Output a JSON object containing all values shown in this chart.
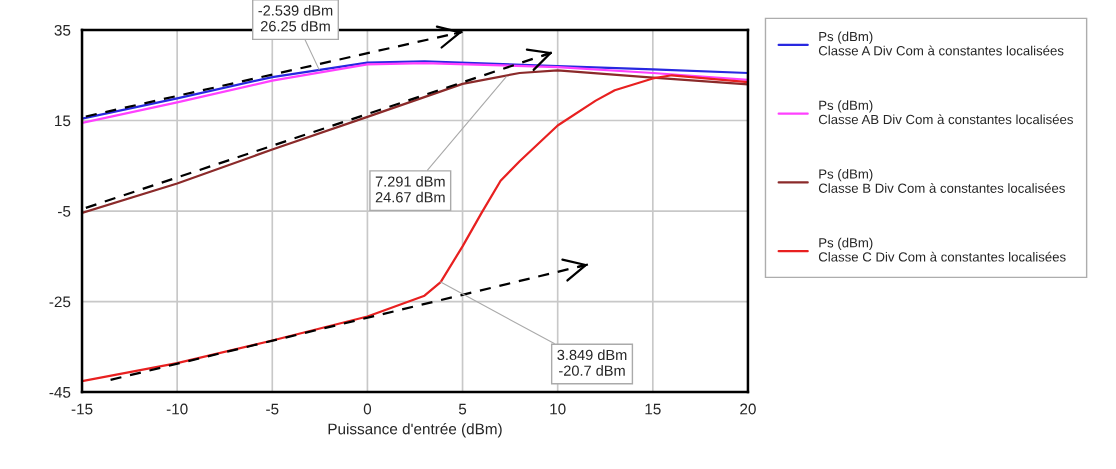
{
  "chart_data": {
    "type": "line",
    "xlabel": "Puissance d'entrée (dBm)",
    "xlim": [
      -15,
      20
    ],
    "ylim": [
      -45,
      35
    ],
    "xticks": [
      -15,
      -10,
      -5,
      0,
      5,
      10,
      15,
      20
    ],
    "yticks": [
      -45,
      -25,
      -5,
      15,
      35
    ],
    "grid": true,
    "legend": "right",
    "marker": "none",
    "series": [
      {
        "name": "Ps (dBm)\nClasse A Div Com à constantes localisées",
        "color": "#2828e0",
        "x": [
          -15,
          -10,
          -5,
          0,
          3,
          10,
          15,
          20
        ],
        "values": [
          15.4,
          19.9,
          24.6,
          27.8,
          28.1,
          27,
          26.3,
          25.5
        ]
      },
      {
        "name": "Ps (dBm)\nClasse AB Div Com à constantes localisées",
        "color": "#ff40ff",
        "x": [
          -15,
          -10,
          -5,
          0,
          3,
          10,
          15,
          20
        ],
        "values": [
          14.5,
          19,
          23.8,
          27.4,
          27.7,
          26.8,
          25.5,
          24
        ]
      },
      {
        "name": "Ps (dBm)\nClasse B Div Com à constantes localisées",
        "color": "#8b2a2a",
        "x": [
          -15,
          -10,
          -5,
          0,
          5,
          8,
          10,
          15,
          20
        ],
        "values": [
          -5.4,
          1.1,
          8.6,
          15.8,
          23.1,
          25.5,
          26.1,
          24.5,
          23
        ]
      },
      {
        "name": "Ps (dBm)\nClasse C Div Com à constantes localisées",
        "color": "#e82020",
        "x": [
          -15,
          -10,
          -5,
          0,
          3,
          3.849,
          5,
          6,
          7,
          8,
          10,
          12,
          13,
          15,
          16,
          20
        ],
        "values": [
          -42.6,
          -38.6,
          -33.6,
          -28.3,
          -23.7,
          -20.7,
          -12.8,
          -5.4,
          1.7,
          6,
          13.9,
          19.4,
          21.7,
          24.3,
          25,
          23.5
        ]
      },
      {
        "type": "line",
        "color": "#000000",
        "line_style": "dashed",
        "x": [
          -14.8,
          5
        ],
        "values": [
          15.9,
          34.6
        ]
      },
      {
        "type": "line",
        "color": "#000000",
        "line_style": "dashed",
        "x": [
          -14.8,
          9.75
        ],
        "values": [
          -4.3,
          30.1
        ]
      },
      {
        "type": "line",
        "color": "#000000",
        "line_style": "dashed",
        "x": [
          -13.5,
          11.6
        ],
        "values": [
          -42.3,
          -16.8
        ]
      }
    ],
    "annotations": [
      {
        "text": "-2.539 dBm\n26.25 dBm",
        "x": -2.539,
        "y": 26.25
      },
      {
        "text": "7.291 dBm\n24.67 dBm",
        "x": 7.291,
        "y": 24.67
      },
      {
        "text": "3.849 dBm\n-20.7 dBm",
        "x": 3.849,
        "y": -20.7
      }
    ]
  }
}
